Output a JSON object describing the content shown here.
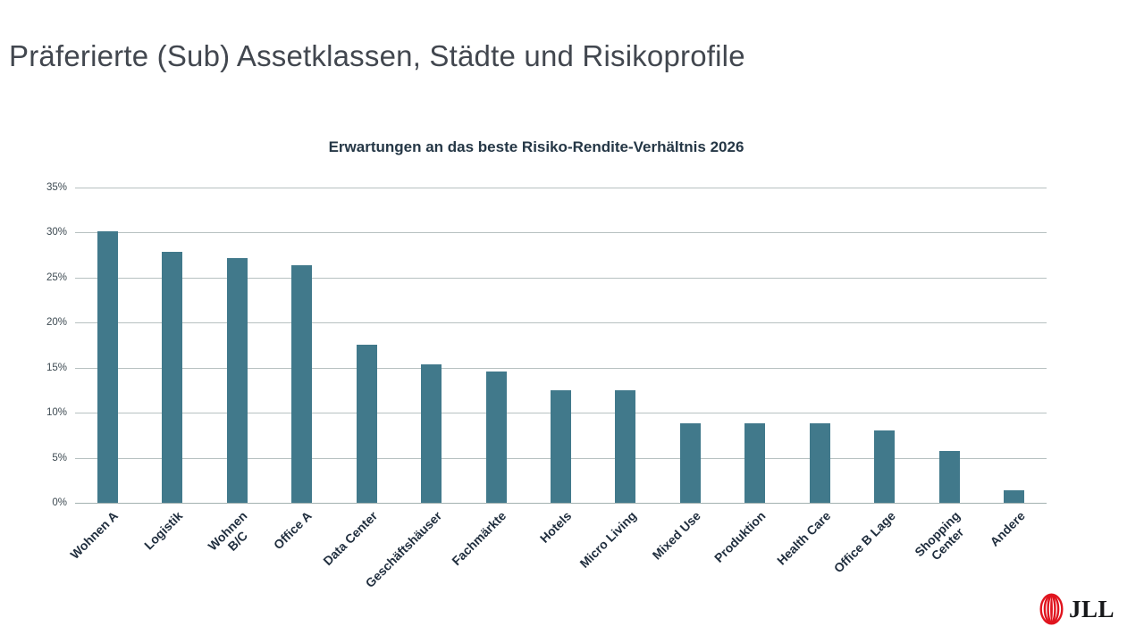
{
  "page": {
    "title": "Präferierte (Sub) Assetklassen, Städte und Risikoprofile"
  },
  "chart_data": {
    "type": "bar",
    "title": "Erwartungen an das beste Risiko-Rendite-Verhältnis 2026",
    "categories": [
      "Wohnen A",
      "Logistik",
      "Wohnen B/C",
      "Office A",
      "Data Center",
      "Geschäftshäuser",
      "Fachmärkte",
      "Hotels",
      "Micro Living",
      "Mixed Use",
      "Produktion",
      "Health Care",
      "Office B Lage",
      "Shopping Center",
      "Andere"
    ],
    "display_labels": [
      "Wohnen A",
      "Logistik",
      "Wohnen\nB/C",
      "Office A",
      "Data Center",
      "Geschäftshäuser",
      "Fachmärkte",
      "Hotels",
      "Micro Living",
      "Mixed Use",
      "Produktion",
      "Health Care",
      "Office B Lage",
      "Shopping\nCenter",
      "Andere"
    ],
    "values": [
      30.1,
      27.9,
      27.2,
      26.4,
      17.6,
      15.4,
      14.6,
      12.5,
      12.5,
      8.8,
      8.8,
      8.8,
      8.0,
      5.8,
      1.4
    ],
    "xlabel": "",
    "ylabel": "",
    "ylim": [
      0,
      35
    ],
    "ytick_step": 5,
    "yticks": [
      "0%",
      "5%",
      "10%",
      "15%",
      "20%",
      "25%",
      "30%",
      "35%"
    ],
    "grid": true,
    "legend": "none",
    "bar_color": "#41798b"
  },
  "branding": {
    "logo_text": "JLL",
    "logo_color": "#e0141e",
    "logo_text_color": "#17181a"
  },
  "colors": {
    "title": "#42474f",
    "chart_title": "#253746",
    "gridline": "#b7c1c1",
    "axis_label": "#1f2d3d"
  }
}
